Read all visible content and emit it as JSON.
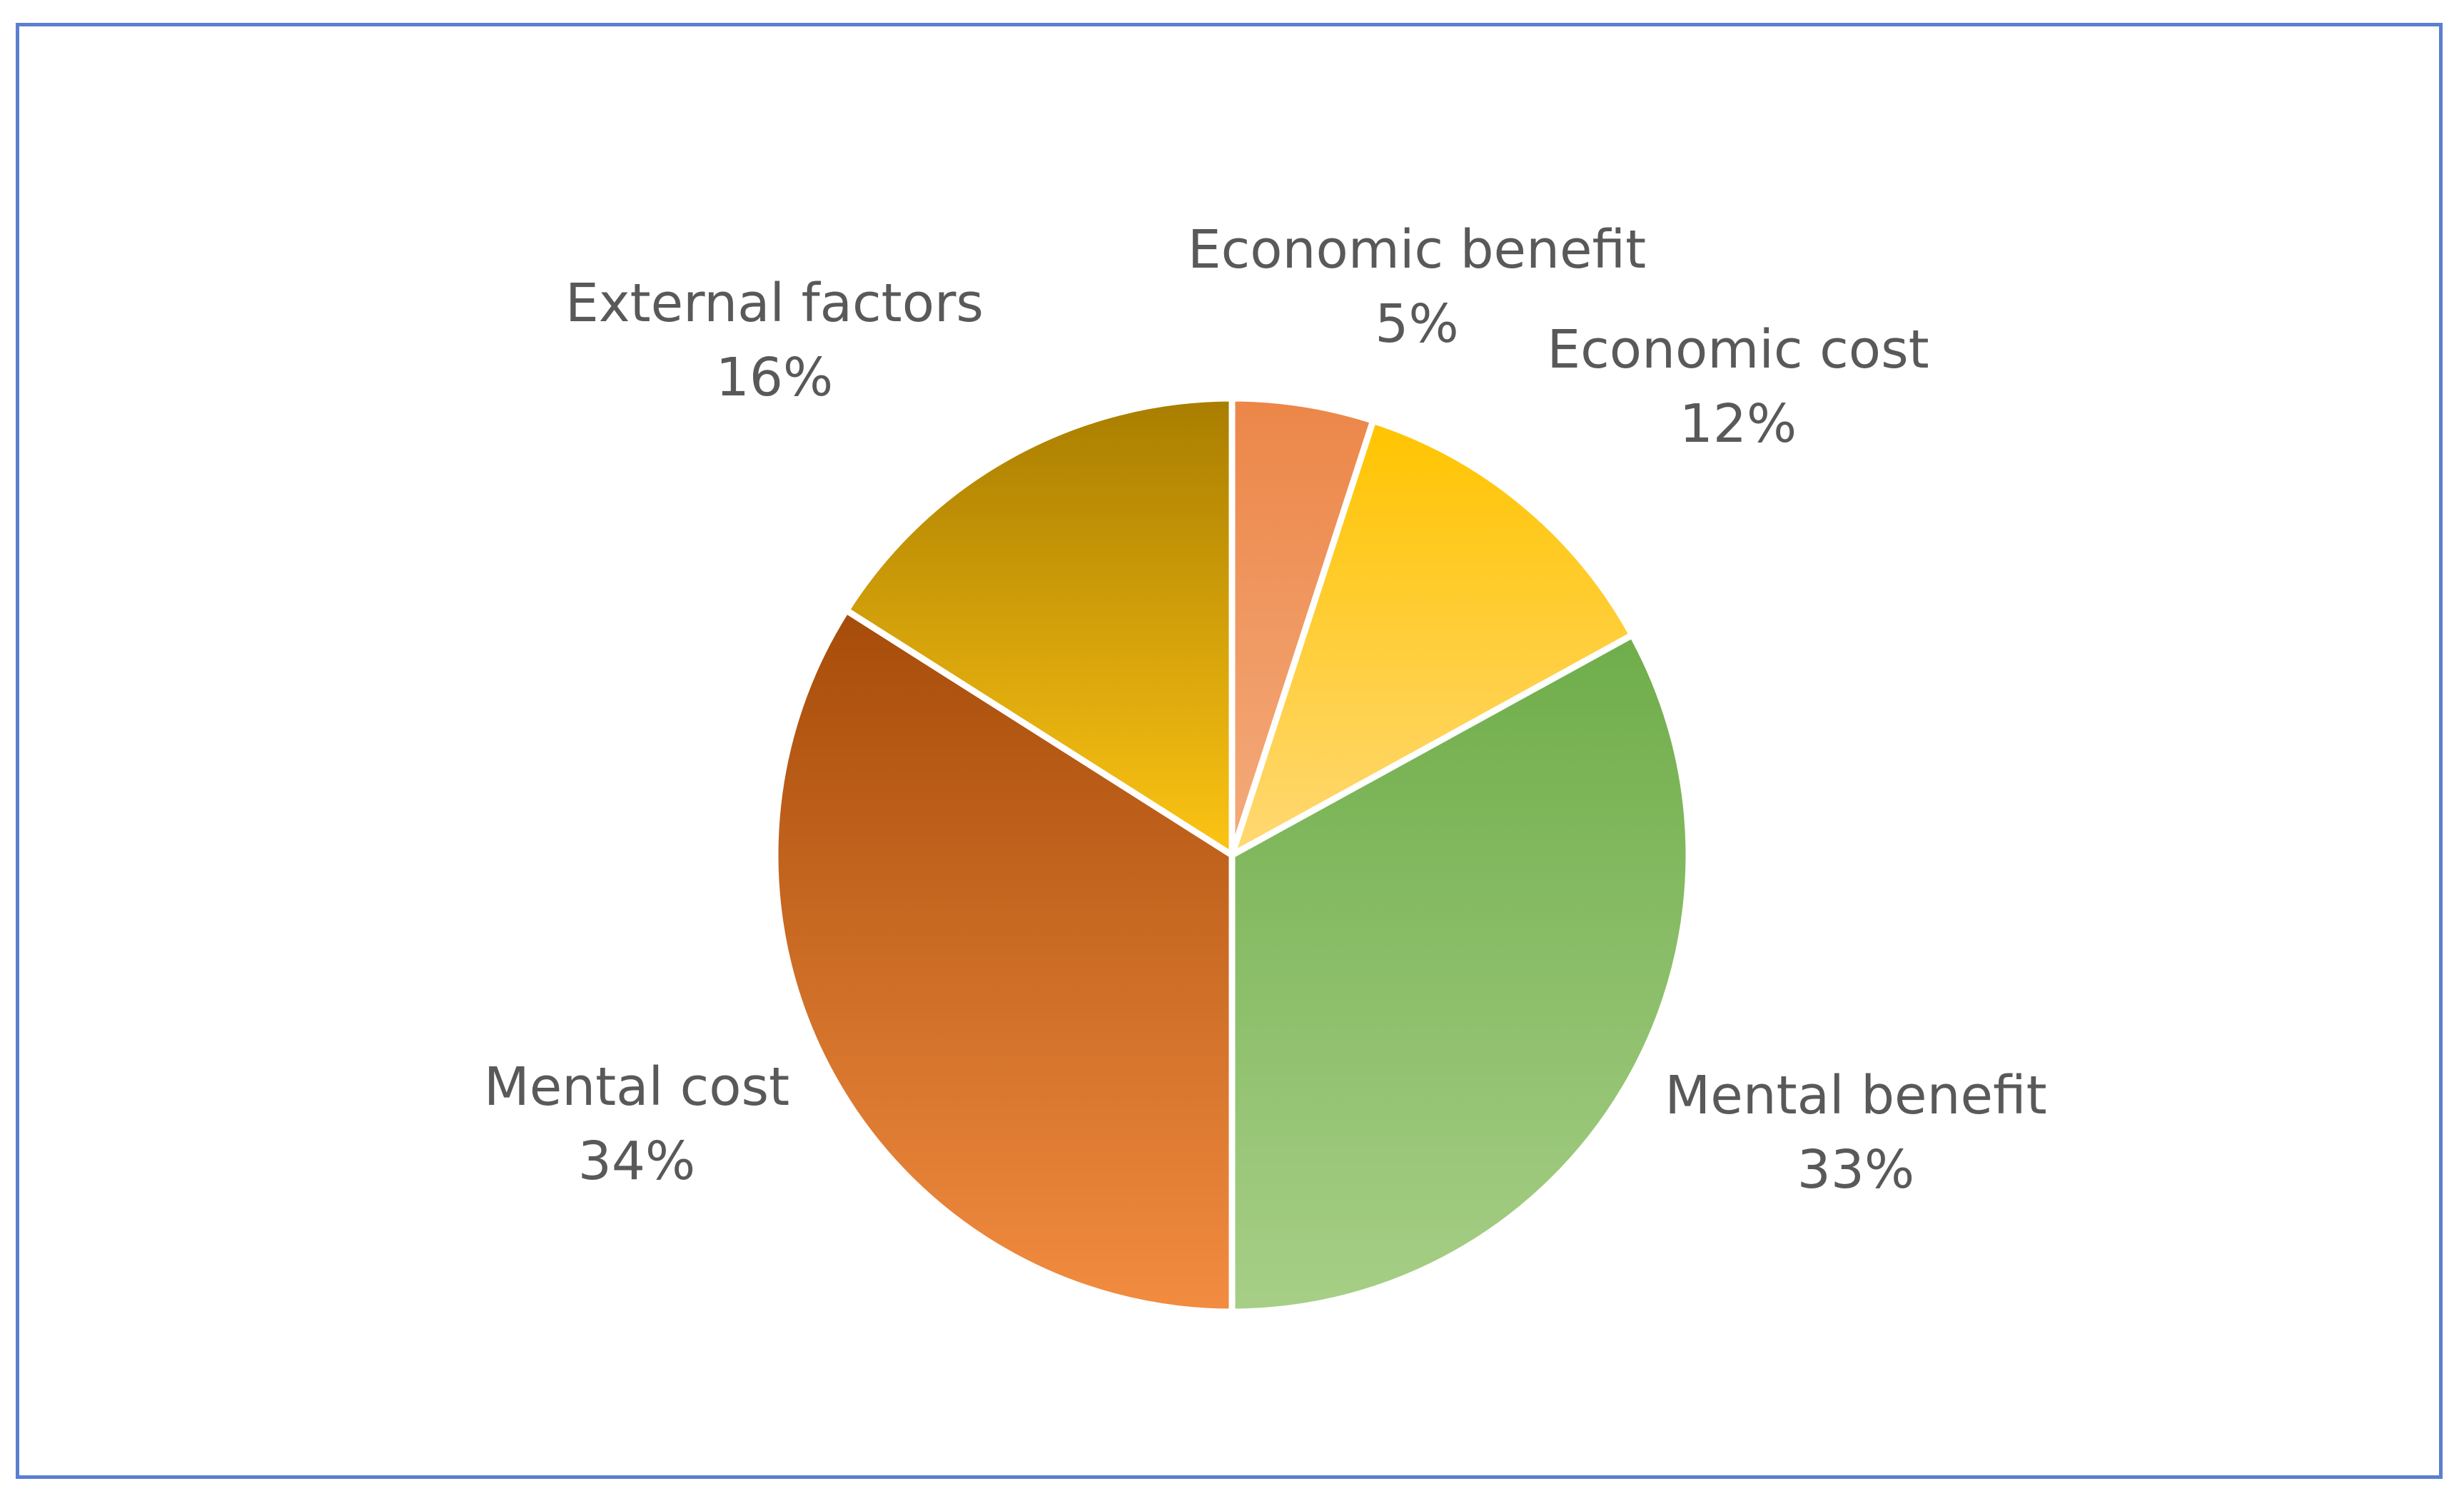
{
  "chart_data": {
    "type": "pie",
    "title": "",
    "start_angle_deg": 0,
    "direction": "clockwise",
    "slices": [
      {
        "label": "Economic benefit",
        "value": 5,
        "display": "5%",
        "color_top": "#ec8648",
        "color_bottom": "#f4ab7c"
      },
      {
        "label": "Economic cost",
        "value": 12,
        "display": "12%",
        "color_top": "#ffc400",
        "color_bottom": "#ffd873"
      },
      {
        "label": "Mental benefit",
        "value": 33,
        "display": "33%",
        "color_top": "#6fad4a",
        "color_bottom": "#a7cf87"
      },
      {
        "label": "Mental cost",
        "value": 34,
        "display": "34%",
        "color_top": "#a64c0a",
        "color_bottom": "#f28c40"
      },
      {
        "label": "External factors",
        "value": 16,
        "display": "16%",
        "color_top": "#a97d00",
        "color_bottom": "#fcc414"
      }
    ],
    "legend": "none",
    "labels": "outside"
  },
  "frame": {
    "border_color": "#5b7fd1"
  }
}
